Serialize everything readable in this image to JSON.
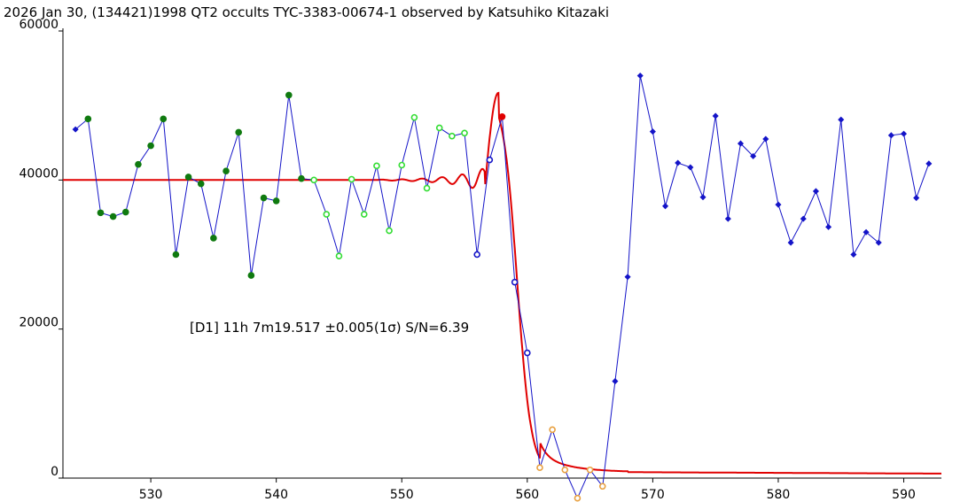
{
  "title": "2026 Jan 30, (134421)1998 QT2 occults TYC-3383-00674-1 observed by Katsuhiko Kitazaki",
  "chart_data": {
    "type": "line",
    "title": "2026 Jan 30, (134421)1998 QT2 occults TYC-3383-00674-1 observed by Katsuhiko Kitazaki",
    "xlabel": "",
    "ylabel": "",
    "xlim": [
      523,
      593
    ],
    "ylim": [
      0,
      60000
    ],
    "x_ticks": [
      "530",
      "540",
      "550",
      "560",
      "570",
      "580",
      "590"
    ],
    "y_ticks": [
      "0",
      "20000",
      "40000",
      "60000"
    ],
    "grid": false,
    "annotation": "[D1] 11h 7m19.517  ±0.005(1σ) S/N=6.39",
    "colors": {
      "line": "#1414c8",
      "model": "#e00000",
      "baseline_filled": "#0f7a0f",
      "baseline_open": "#33dd33",
      "event_open": "#1414c8",
      "bottom_open": "#e8a040",
      "post_event": "#1414c8",
      "d_point": "#e00000"
    },
    "series": [
      {
        "x": 524,
        "y": 46800,
        "marker": "blue-dot"
      },
      {
        "x": 525,
        "y": 48200,
        "marker": "green-filled"
      },
      {
        "x": 526,
        "y": 35600,
        "marker": "green-filled"
      },
      {
        "x": 527,
        "y": 35100,
        "marker": "green-filled"
      },
      {
        "x": 528,
        "y": 35700,
        "marker": "green-filled"
      },
      {
        "x": 529,
        "y": 42100,
        "marker": "green-filled"
      },
      {
        "x": 530,
        "y": 44600,
        "marker": "green-filled"
      },
      {
        "x": 531,
        "y": 48200,
        "marker": "green-filled"
      },
      {
        "x": 532,
        "y": 30000,
        "marker": "green-filled"
      },
      {
        "x": 533,
        "y": 40400,
        "marker": "green-filled"
      },
      {
        "x": 534,
        "y": 39500,
        "marker": "green-filled"
      },
      {
        "x": 535,
        "y": 32200,
        "marker": "green-filled"
      },
      {
        "x": 536,
        "y": 41200,
        "marker": "green-filled"
      },
      {
        "x": 537,
        "y": 46400,
        "marker": "green-filled"
      },
      {
        "x": 538,
        "y": 27200,
        "marker": "green-filled"
      },
      {
        "x": 539,
        "y": 37600,
        "marker": "green-filled"
      },
      {
        "x": 540,
        "y": 37200,
        "marker": "green-filled"
      },
      {
        "x": 541,
        "y": 51400,
        "marker": "green-filled"
      },
      {
        "x": 542,
        "y": 40200,
        "marker": "green-filled"
      },
      {
        "x": 543,
        "y": 40000,
        "marker": "green-open"
      },
      {
        "x": 544,
        "y": 35400,
        "marker": "green-open"
      },
      {
        "x": 545,
        "y": 29800,
        "marker": "green-open"
      },
      {
        "x": 546,
        "y": 40100,
        "marker": "green-open"
      },
      {
        "x": 547,
        "y": 35400,
        "marker": "green-open"
      },
      {
        "x": 548,
        "y": 41900,
        "marker": "green-open"
      },
      {
        "x": 549,
        "y": 33200,
        "marker": "green-open"
      },
      {
        "x": 550,
        "y": 42000,
        "marker": "green-open"
      },
      {
        "x": 551,
        "y": 48400,
        "marker": "green-open"
      },
      {
        "x": 552,
        "y": 38900,
        "marker": "green-open"
      },
      {
        "x": 553,
        "y": 47000,
        "marker": "green-open"
      },
      {
        "x": 554,
        "y": 45900,
        "marker": "green-open"
      },
      {
        "x": 555,
        "y": 46300,
        "marker": "green-open"
      },
      {
        "x": 556,
        "y": 30000,
        "marker": "blue-open"
      },
      {
        "x": 557,
        "y": 42700,
        "marker": "blue-open"
      },
      {
        "x": 558,
        "y": 48500,
        "marker": "red-dot"
      },
      {
        "x": 559,
        "y": 26300,
        "marker": "blue-open"
      },
      {
        "x": 560,
        "y": 16800,
        "marker": "blue-open"
      },
      {
        "x": 561,
        "y": 1400,
        "marker": "orange-open"
      },
      {
        "x": 562,
        "y": 6500,
        "marker": "orange-open"
      },
      {
        "x": 563,
        "y": 1100,
        "marker": "orange-open"
      },
      {
        "x": 564,
        "y": -2700,
        "marker": "orange-open"
      },
      {
        "x": 565,
        "y": 1100,
        "marker": "orange-open"
      },
      {
        "x": 566,
        "y": -1100,
        "marker": "orange-open"
      },
      {
        "x": 567,
        "y": 13000,
        "marker": "blue-dot"
      },
      {
        "x": 568,
        "y": 27000,
        "marker": "blue-dot"
      },
      {
        "x": 569,
        "y": 54000,
        "marker": "blue-dot"
      },
      {
        "x": 570,
        "y": 46500,
        "marker": "blue-dot"
      },
      {
        "x": 571,
        "y": 36500,
        "marker": "blue-dot"
      },
      {
        "x": 572,
        "y": 42300,
        "marker": "blue-dot"
      },
      {
        "x": 573,
        "y": 41700,
        "marker": "blue-dot"
      },
      {
        "x": 574,
        "y": 37700,
        "marker": "blue-dot"
      },
      {
        "x": 575,
        "y": 48600,
        "marker": "blue-dot"
      },
      {
        "x": 576,
        "y": 34800,
        "marker": "blue-dot"
      },
      {
        "x": 577,
        "y": 44900,
        "marker": "blue-dot"
      },
      {
        "x": 578,
        "y": 43200,
        "marker": "blue-dot"
      },
      {
        "x": 579,
        "y": 45500,
        "marker": "blue-dot"
      },
      {
        "x": 580,
        "y": 36700,
        "marker": "blue-dot"
      },
      {
        "x": 581,
        "y": 31600,
        "marker": "blue-dot"
      },
      {
        "x": 582,
        "y": 34800,
        "marker": "blue-dot"
      },
      {
        "x": 583,
        "y": 38500,
        "marker": "blue-dot"
      },
      {
        "x": 584,
        "y": 33700,
        "marker": "blue-dot"
      },
      {
        "x": 585,
        "y": 48100,
        "marker": "blue-dot"
      },
      {
        "x": 586,
        "y": 30000,
        "marker": "blue-dot"
      },
      {
        "x": 587,
        "y": 33000,
        "marker": "blue-dot"
      },
      {
        "x": 588,
        "y": 31600,
        "marker": "blue-dot"
      },
      {
        "x": 589,
        "y": 46000,
        "marker": "blue-dot"
      },
      {
        "x": 590,
        "y": 46200,
        "marker": "blue-dot"
      },
      {
        "x": 591,
        "y": 37600,
        "marker": "blue-dot"
      },
      {
        "x": 592,
        "y": 42200,
        "marker": "blue-dot"
      }
    ],
    "model_curve": {
      "baseline": 40000,
      "floor": 800,
      "ripple_start": 548,
      "peak_x": 557.7,
      "peak_y": 51700,
      "drop_center": 559.2,
      "low_x": 568,
      "low_y": 800,
      "end_x": 593,
      "end_y": 600
    }
  }
}
